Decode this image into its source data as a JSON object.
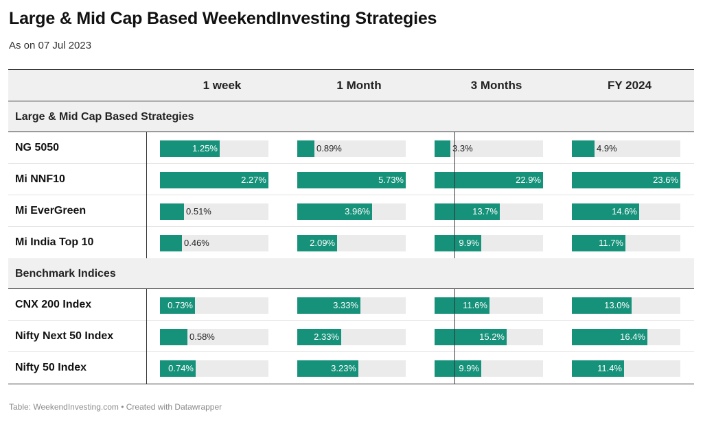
{
  "title": "Large & Mid Cap Based WeekendInvesting Strategies",
  "subtitle": "As on 07 Jul 2023",
  "footer": "Table: WeekendInvesting.com • Created with Datawrapper",
  "colors": {
    "bar": "#16917a",
    "track": "#ebebeb",
    "header_bg": "#f0f0f0"
  },
  "chart_data": {
    "type": "table",
    "columns": [
      "1 week",
      "1 Month",
      "3 Months",
      "FY 2024"
    ],
    "column_max": [
      2.27,
      5.73,
      22.9,
      23.6
    ],
    "groups": [
      {
        "label": "Large & Mid Cap Based Strategies",
        "rows": [
          {
            "name": "NG 5050",
            "values": [
              1.25,
              0.89,
              3.3,
              4.9
            ],
            "labels": [
              "1.25%",
              "0.89%",
              "3.3%",
              "4.9%"
            ]
          },
          {
            "name": "Mi NNF10",
            "values": [
              2.27,
              5.73,
              22.9,
              23.6
            ],
            "labels": [
              "2.27%",
              "5.73%",
              "22.9%",
              "23.6%"
            ]
          },
          {
            "name": "Mi EverGreen",
            "values": [
              0.51,
              3.96,
              13.7,
              14.6
            ],
            "labels": [
              "0.51%",
              "3.96%",
              "13.7%",
              "14.6%"
            ]
          },
          {
            "name": "Mi India Top 10",
            "values": [
              0.46,
              2.09,
              9.9,
              11.7
            ],
            "labels": [
              "0.46%",
              "2.09%",
              "9.9%",
              "11.7%"
            ]
          }
        ]
      },
      {
        "label": "Benchmark Indices",
        "rows": [
          {
            "name": "CNX 200 Index",
            "values": [
              0.73,
              3.33,
              11.6,
              13.0
            ],
            "labels": [
              "0.73%",
              "3.33%",
              "11.6%",
              "13.0%"
            ]
          },
          {
            "name": "Nifty Next 50 Index",
            "values": [
              0.58,
              2.33,
              15.2,
              16.4
            ],
            "labels": [
              "0.58%",
              "2.33%",
              "15.2%",
              "16.4%"
            ]
          },
          {
            "name": "Nifty 50 Index",
            "values": [
              0.74,
              3.23,
              9.9,
              11.4
            ],
            "labels": [
              "0.74%",
              "3.23%",
              "9.9%",
              "11.4%"
            ]
          }
        ]
      }
    ]
  }
}
